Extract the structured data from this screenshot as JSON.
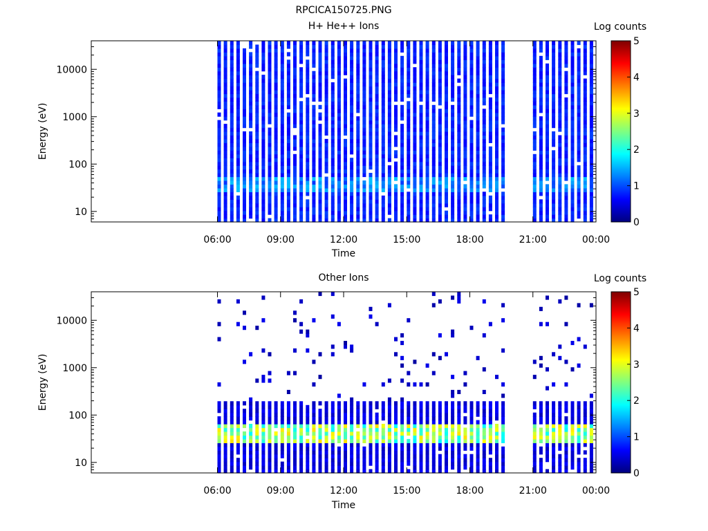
{
  "page_title": "RPCICA150725.PNG",
  "chart_data": [
    {
      "type": "heatmap",
      "title": "H+ He++ Ions",
      "xlabel": "Time",
      "ylabel": "Energy (eV)",
      "x_ticks": [
        "06:00",
        "09:00",
        "12:00",
        "15:00",
        "18:00",
        "21:00",
        "00:00"
      ],
      "x_tick_hours": [
        6,
        9,
        12,
        15,
        18,
        21,
        24
      ],
      "xlim_hours": [
        0,
        24
      ],
      "y_scale": "log",
      "ylim": [
        6,
        40000
      ],
      "y_ticks": [
        "10",
        "100",
        "1000",
        "10000"
      ],
      "y_tick_values": [
        10,
        100,
        1000,
        10000
      ],
      "colorbar": {
        "label": "Log counts",
        "min": 0,
        "max": 5,
        "ticks": [
          "0",
          "1",
          "2",
          "3",
          "4",
          "5"
        ]
      },
      "data_coverage_hours": [
        [
          6.0,
          19.8
        ],
        [
          21.0,
          23.8
        ]
      ],
      "sweep_period_hours": 0.3,
      "background_log_counts": 0.6,
      "peak_band_eV": [
        25,
        50
      ],
      "peak_log_counts": 1.6,
      "sparse_high_energy": false
    },
    {
      "type": "heatmap",
      "title": "Other Ions",
      "xlabel": "Time",
      "ylabel": "Energy (eV)",
      "x_ticks": [
        "06:00",
        "09:00",
        "12:00",
        "15:00",
        "18:00",
        "21:00",
        "00:00"
      ],
      "x_tick_hours": [
        6,
        9,
        12,
        15,
        18,
        21,
        24
      ],
      "xlim_hours": [
        0,
        24
      ],
      "y_scale": "log",
      "ylim": [
        6,
        40000
      ],
      "y_ticks": [
        "10",
        "100",
        "1000",
        "10000"
      ],
      "y_tick_values": [
        10,
        100,
        1000,
        10000
      ],
      "colorbar": {
        "label": "Log counts",
        "min": 0,
        "max": 5,
        "ticks": [
          "0",
          "1",
          "2",
          "3",
          "4",
          "5"
        ]
      },
      "data_coverage_hours": [
        [
          6.0,
          19.8
        ],
        [
          21.0,
          23.8
        ]
      ],
      "sweep_period_hours": 0.3,
      "background_log_counts": 0.3,
      "dense_upper_eV": 200,
      "peak_band_eV": [
        25,
        60
      ],
      "peak_log_counts": 3.3,
      "sparse_high_energy": true
    }
  ]
}
